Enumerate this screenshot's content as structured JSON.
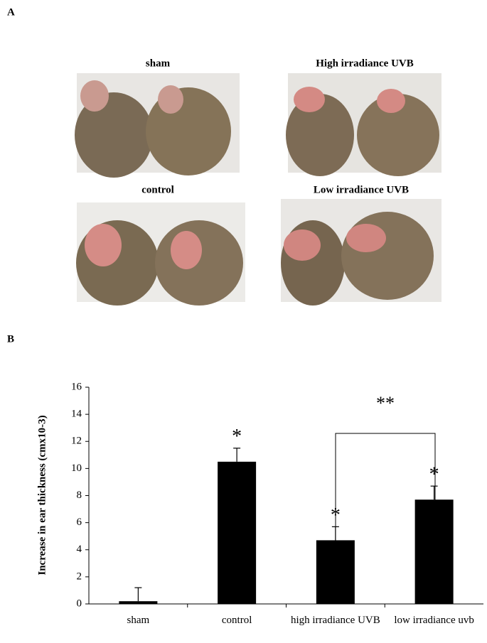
{
  "panel_a": {
    "label": "A",
    "captions": [
      "sham",
      "High irradiance UVB",
      "control",
      "Low irradiance UVB"
    ]
  },
  "chart_data": {
    "type": "bar",
    "panel_label": "B",
    "y_label": "Increase in ear thickness (cmx10-3)",
    "categories": [
      "sham",
      "control",
      "high irradiance UVB",
      "low irradiance uvb"
    ],
    "values": [
      0.2,
      10.5,
      4.7,
      7.7
    ],
    "errors": [
      1.0,
      1.0,
      1.0,
      1.0
    ],
    "color": "#000000",
    "significance": [
      null,
      "*",
      "*",
      "*"
    ],
    "bracket_label": "**",
    "ylim": [
      0,
      16
    ],
    "yticks": [
      0,
      2,
      4,
      6,
      8,
      10,
      12,
      14,
      16
    ],
    "grid": false
  }
}
